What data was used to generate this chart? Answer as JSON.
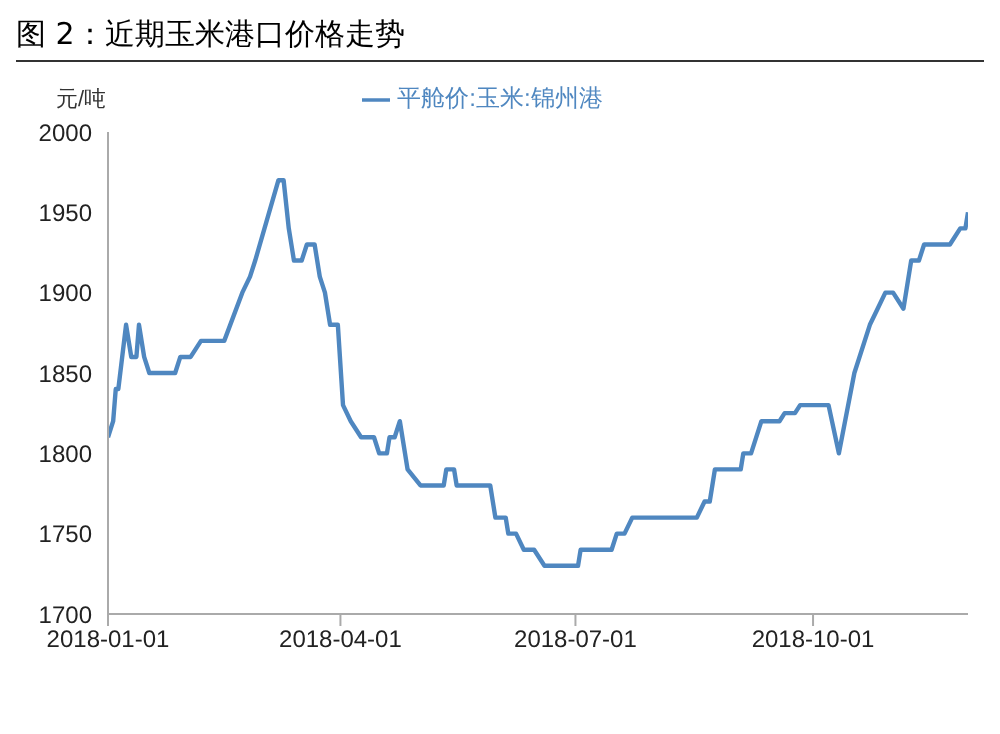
{
  "chart_data": {
    "type": "line",
    "title": "图 2：近期玉米港口价格走势",
    "ylabel": "元/吨",
    "x": [
      "2018-01-01",
      "2018-01-03",
      "2018-01-04",
      "2018-01-05",
      "2018-01-08",
      "2018-01-10",
      "2018-01-12",
      "2018-01-13",
      "2018-01-15",
      "2018-01-17",
      "2018-01-27",
      "2018-01-29",
      "2018-02-02",
      "2018-02-06",
      "2018-02-15",
      "2018-02-22",
      "2018-02-25",
      "2018-02-27",
      "2018-03-08",
      "2018-03-10",
      "2018-03-12",
      "2018-03-14",
      "2018-03-17",
      "2018-03-19",
      "2018-03-22",
      "2018-03-24",
      "2018-03-26",
      "2018-03-28",
      "2018-03-31",
      "2018-04-02",
      "2018-04-05",
      "2018-04-09",
      "2018-04-14",
      "2018-04-16",
      "2018-04-19",
      "2018-04-20",
      "2018-04-22",
      "2018-04-24",
      "2018-04-27",
      "2018-05-02",
      "2018-05-11",
      "2018-05-12",
      "2018-05-15",
      "2018-05-16",
      "2018-05-29",
      "2018-05-31",
      "2018-06-04",
      "2018-06-05",
      "2018-06-08",
      "2018-06-11",
      "2018-06-15",
      "2018-06-19",
      "2018-07-02",
      "2018-07-03",
      "2018-07-15",
      "2018-07-17",
      "2018-07-20",
      "2018-07-23",
      "2018-08-17",
      "2018-08-20",
      "2018-08-22",
      "2018-08-24",
      "2018-09-03",
      "2018-09-04",
      "2018-09-07",
      "2018-09-11",
      "2018-09-18",
      "2018-09-20",
      "2018-09-24",
      "2018-09-26",
      "2018-10-07",
      "2018-10-11",
      "2018-10-17",
      "2018-10-23",
      "2018-10-26",
      "2018-10-29",
      "2018-11-01",
      "2018-11-05",
      "2018-11-08",
      "2018-11-11",
      "2018-11-13",
      "2018-11-23",
      "2018-11-27",
      "2018-11-29",
      "2018-11-30"
    ],
    "series": [
      {
        "name": "平舱价:玉米:锦州港",
        "color": "#4f87c0",
        "values": [
          1810,
          1820,
          1840,
          1840,
          1880,
          1860,
          1860,
          1880,
          1860,
          1850,
          1850,
          1860,
          1860,
          1870,
          1870,
          1900,
          1910,
          1920,
          1970,
          1970,
          1940,
          1920,
          1920,
          1930,
          1930,
          1910,
          1900,
          1880,
          1880,
          1830,
          1820,
          1810,
          1810,
          1800,
          1800,
          1810,
          1810,
          1820,
          1790,
          1780,
          1780,
          1790,
          1790,
          1780,
          1780,
          1760,
          1760,
          1750,
          1750,
          1740,
          1740,
          1730,
          1730,
          1740,
          1740,
          1750,
          1750,
          1760,
          1760,
          1770,
          1770,
          1790,
          1790,
          1800,
          1800,
          1820,
          1820,
          1825,
          1825,
          1830,
          1830,
          1800,
          1850,
          1880,
          1890,
          1900,
          1900,
          1890,
          1920,
          1920,
          1930,
          1930,
          1940,
          1940,
          1950
        ]
      }
    ],
    "xlim": [
      "2018-01-01",
      "2018-11-30"
    ],
    "xticks": [
      "2018-01-01",
      "2018-04-01",
      "2018-07-01",
      "2018-10-01"
    ],
    "ylim": [
      1700,
      2000
    ],
    "yticks": [
      1700,
      1750,
      1800,
      1850,
      1900,
      1950,
      2000
    ],
    "grid": false,
    "legend": "top",
    "marker": "none",
    "line_style": "solid"
  }
}
